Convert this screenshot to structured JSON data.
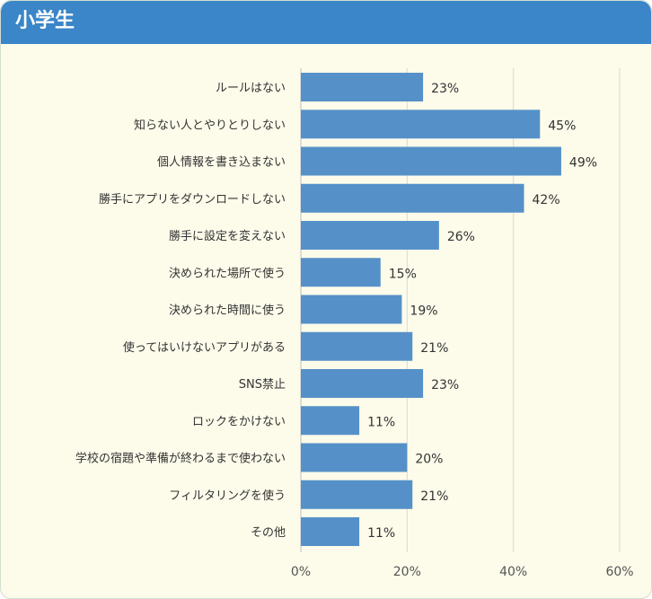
{
  "header": {
    "title": "小学生",
    "color": "#3a86c8"
  },
  "chart_data": {
    "type": "bar",
    "orientation": "horizontal",
    "title": "",
    "xlabel": "",
    "ylabel": "",
    "xlim": [
      0,
      60
    ],
    "grid": true,
    "bar_color": "#5591c8",
    "categories": [
      "ルールはない",
      "知らない人とやりとりしない",
      "個人情報を書き込まない",
      "勝手にアプリをダウンロードしない",
      "勝手に設定を変えない",
      "決められた場所で使う",
      "決められた時間に使う",
      "使ってはいけないアプリがある",
      "SNS禁止",
      "ロックをかけない",
      "学校の宿題や準備が終わるまで使わない",
      "フィルタリングを使う",
      "その他"
    ],
    "values": [
      23,
      45,
      49,
      42,
      26,
      15,
      19,
      21,
      23,
      11,
      20,
      21,
      11
    ],
    "value_labels": [
      "23%",
      "45%",
      "49%",
      "42%",
      "26%",
      "15%",
      "19%",
      "21%",
      "23%",
      "11%",
      "20%",
      "21%",
      "11%"
    ],
    "x_ticks": [
      0,
      20,
      40,
      60
    ],
    "x_tick_labels": [
      "0%",
      "20%",
      "40%",
      "60%"
    ]
  }
}
